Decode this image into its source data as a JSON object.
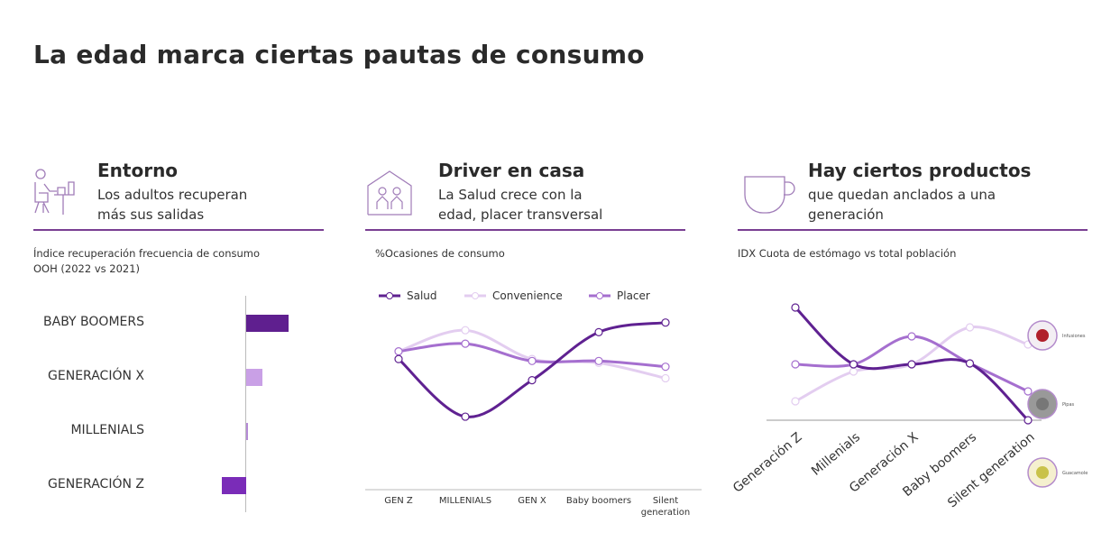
{
  "title": "La edad marca ciertas pautas de consumo",
  "panels": [
    {
      "title": "Entorno",
      "subtitle": [
        "Los adultos recuperan",
        "más sus salidas"
      ],
      "icon": "person-at-desk-icon",
      "note": [
        "Índice recuperación frecuencia de consumo",
        "OOH (2022 vs 2021)"
      ]
    },
    {
      "title": "Driver en casa",
      "subtitle": [
        "La Salud crece con la",
        "edad, placer transversal"
      ],
      "icon": "house-family-icon",
      "note": [
        "%Ocasiones de consumo"
      ]
    },
    {
      "title": "Hay ciertos productos",
      "subtitle": [
        "que quedan anclados a una",
        "generación"
      ],
      "icon": "cup-icon",
      "note": [
        "IDX Cuota de estómago vs total población"
      ]
    }
  ],
  "colors": {
    "accent": "#7a3f92",
    "dark": "#5f2191",
    "medium": "#a56fcf",
    "light": "#e3cdf0"
  },
  "chart_data": [
    {
      "type": "bar",
      "orientation": "horizontal",
      "categories": [
        "BABY BOOMERS",
        "GENERACIÓN X",
        "MILLENIALS",
        "GENERACIÓN Z"
      ],
      "values": [
        47,
        18,
        2,
        -27
      ],
      "bar_colors": [
        "#5f1f8f",
        "#c9a0e6",
        "#b58bd6",
        "#7a2cb8"
      ],
      "xlim": [
        -40,
        60
      ],
      "grid": false
    },
    {
      "type": "line",
      "categories": [
        "GEN Z",
        "MILLENIALS",
        "GEN X",
        "Baby boomers",
        "Silent generation"
      ],
      "ylim": [
        0,
        100
      ],
      "legend": "top",
      "grid": false,
      "series": [
        {
          "name": "Salud",
          "color": "#5f2191",
          "values": [
            68,
            38,
            57,
            82,
            87
          ]
        },
        {
          "name": "Convenience",
          "color": "#e3cdf0",
          "values": [
            72,
            83,
            68,
            66,
            58
          ]
        },
        {
          "name": "Placer",
          "color": "#a56fcf",
          "values": [
            72,
            76,
            67,
            67,
            64
          ]
        }
      ]
    },
    {
      "type": "line",
      "categories": [
        "Generación Z",
        "Millenials",
        "Generación X",
        "Baby boomers",
        "Silent generation"
      ],
      "ylim": [
        0,
        130
      ],
      "grid": false,
      "series": [
        {
          "color": "#5f2191",
          "values": [
            125,
            62,
            62,
            63,
            0
          ]
        },
        {
          "color": "#a56fcf",
          "values": [
            62,
            62,
            93,
            63,
            32
          ]
        },
        {
          "color": "#e3cdf0",
          "values": [
            21,
            54,
            62,
            103,
            84
          ]
        }
      ],
      "product_labels": [
        "Infusiones",
        "Pipas",
        "Guacamole"
      ]
    }
  ]
}
